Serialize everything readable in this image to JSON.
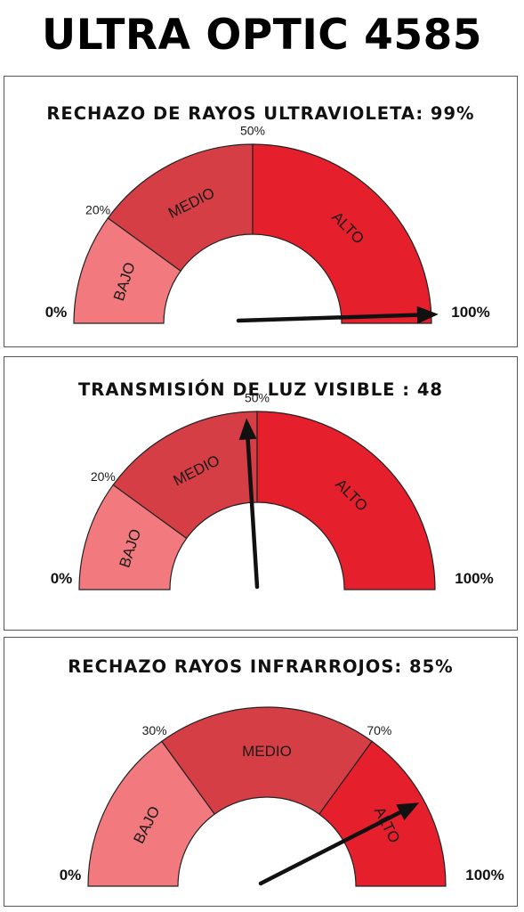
{
  "title": "ULTRA OPTIC 4585",
  "colors": {
    "low": "#f27a7e",
    "mid": "#d63e46",
    "high": "#e51f2b",
    "needle": "#111111",
    "outline": "#222222"
  },
  "chart_data": [
    {
      "type": "gauge",
      "title": "RECHAZO DE RAYOS ULTRAVIOLETA: 99%",
      "value": 99,
      "range": [
        0,
        100
      ],
      "min_label": "0%",
      "max_label": "100%",
      "bands": [
        {
          "label": "BAJO",
          "from": 0,
          "to": 20
        },
        {
          "label": "MEDIO",
          "from": 20,
          "to": 50
        },
        {
          "label": "ALTO",
          "from": 50,
          "to": 100
        }
      ],
      "thresholds": [
        {
          "value": 20,
          "label": "20%"
        },
        {
          "value": 50,
          "label": "50%"
        }
      ]
    },
    {
      "type": "gauge",
      "title": "TRANSMISIÓN DE LUZ VISIBLE : 48",
      "value": 48,
      "range": [
        0,
        100
      ],
      "min_label": "0%",
      "max_label": "100%",
      "bands": [
        {
          "label": "BAJO",
          "from": 0,
          "to": 20
        },
        {
          "label": "MEDIO",
          "from": 20,
          "to": 50
        },
        {
          "label": "ALTO",
          "from": 50,
          "to": 100
        }
      ],
      "thresholds": [
        {
          "value": 20,
          "label": "20%"
        },
        {
          "value": 50,
          "label": "50%"
        }
      ]
    },
    {
      "type": "gauge",
      "title": "RECHAZO RAYOS INFRARROJOS: 85%",
      "value": 85,
      "range": [
        0,
        100
      ],
      "min_label": "0%",
      "max_label": "100%",
      "bands": [
        {
          "label": "BAJO",
          "from": 0,
          "to": 30
        },
        {
          "label": "MEDIO",
          "from": 30,
          "to": 70
        },
        {
          "label": "ALTO",
          "from": 70,
          "to": 100
        }
      ],
      "thresholds": [
        {
          "value": 30,
          "label": "30%"
        },
        {
          "value": 70,
          "label": "70%"
        }
      ]
    }
  ]
}
